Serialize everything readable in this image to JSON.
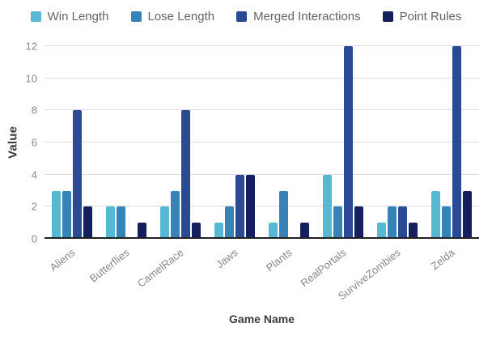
{
  "chart_data": {
    "type": "bar",
    "title": "",
    "xlabel": "Game Name",
    "ylabel": "Value",
    "ylim": [
      0,
      12
    ],
    "yticks": [
      0,
      2,
      4,
      6,
      8,
      10,
      12
    ],
    "grid": true,
    "legend_position": "top",
    "categories": [
      "Aliens",
      "Butterflies",
      "CamelRace",
      "Jaws",
      "Plants",
      "RealPortals",
      "SurviveZombies",
      "Zelda"
    ],
    "series": [
      {
        "name": "Win Length",
        "color": "#57B8D3",
        "values": [
          3,
          2,
          2,
          1,
          1,
          4,
          1,
          3
        ]
      },
      {
        "name": "Lose Length",
        "color": "#3583B8",
        "values": [
          3,
          2,
          3,
          2,
          3,
          2,
          2,
          2
        ]
      },
      {
        "name": "Merged Interactions",
        "color": "#2A4A93",
        "values": [
          8,
          0,
          8,
          4,
          0,
          12,
          2,
          12
        ]
      },
      {
        "name": "Point Rules",
        "color": "#161F5E",
        "values": [
          2,
          1,
          1,
          4,
          1,
          2,
          1,
          3
        ]
      }
    ],
    "colors": {
      "gridline": "#dcdcdc",
      "baseline": "#212121",
      "tick_text": "#878787",
      "axis_title_text": "#3c3c3c",
      "legend_text": "#636363",
      "background": "#ffffff"
    }
  }
}
